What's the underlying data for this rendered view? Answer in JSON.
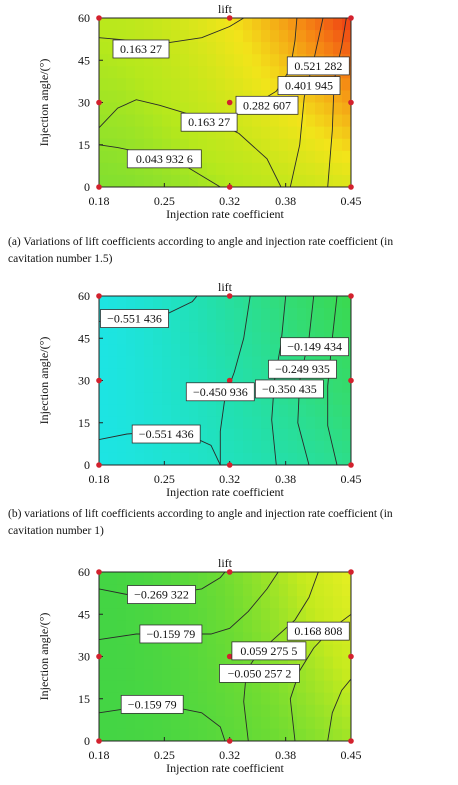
{
  "figure": {
    "captions": [
      "(a) Variations of lift coefficients according to angle and injection rate coefficient (in cavitation number 1.5)",
      "(b) variations of lift coefficients according to angle and injection rate coefficient (in cavitation number 1)"
    ]
  },
  "chart_data": [
    {
      "type": "heatmap",
      "title": "lift",
      "xlabel": "Injection rate coefficient",
      "ylabel": "Injection angle/(°)",
      "xlim": [
        0.18,
        0.45
      ],
      "ylim": [
        0,
        60
      ],
      "x_ticks": [
        "0.18",
        "0.25",
        "0.32",
        "0.38",
        "0.45"
      ],
      "y_ticks": [
        "0",
        "15",
        "30",
        "45",
        "60"
      ],
      "grid": false,
      "contour_labels": [
        {
          "text": "0.163 27",
          "x": 0.225,
          "y": 49
        },
        {
          "text": "0.521 282",
          "x": 0.415,
          "y": 43
        },
        {
          "text": "0.401 945",
          "x": 0.405,
          "y": 36
        },
        {
          "text": "0.282 607",
          "x": 0.36,
          "y": 29
        },
        {
          "text": "0.163 27",
          "x": 0.298,
          "y": 23
        },
        {
          "text": "0.043 932 6",
          "x": 0.25,
          "y": 10
        }
      ],
      "design_points": [
        [
          0.18,
          0
        ],
        [
          0.32,
          0
        ],
        [
          0.45,
          0
        ],
        [
          0.18,
          30
        ],
        [
          0.32,
          30
        ],
        [
          0.45,
          30
        ],
        [
          0.18,
          60
        ],
        [
          0.32,
          60
        ],
        [
          0.45,
          60
        ]
      ],
      "color_stops": [
        "#32d24d",
        "#b6e81c",
        "#f2e41a",
        "#f58d14",
        "#ef3a14"
      ]
    },
    {
      "type": "heatmap",
      "title": "lift",
      "xlabel": "Injection rate coefficient",
      "ylabel": "Injection angle/(°)",
      "xlim": [
        0.18,
        0.45
      ],
      "ylim": [
        0,
        60
      ],
      "x_ticks": [
        "0.18",
        "0.25",
        "0.32",
        "0.38",
        "0.45"
      ],
      "y_ticks": [
        "0",
        "15",
        "30",
        "45",
        "60"
      ],
      "grid": false,
      "contour_labels": [
        {
          "text": "−0.551 436",
          "x": 0.218,
          "y": 52
        },
        {
          "text": "−0.149 434",
          "x": 0.411,
          "y": 42
        },
        {
          "text": "−0.249 935",
          "x": 0.398,
          "y": 34
        },
        {
          "text": "−0.350 435",
          "x": 0.384,
          "y": 27
        },
        {
          "text": "−0.450 936",
          "x": 0.31,
          "y": 26
        },
        {
          "text": "−0.551 436",
          "x": 0.252,
          "y": 11
        }
      ],
      "design_points": [
        [
          0.18,
          0
        ],
        [
          0.32,
          0
        ],
        [
          0.45,
          0
        ],
        [
          0.18,
          30
        ],
        [
          0.32,
          30
        ],
        [
          0.45,
          30
        ],
        [
          0.18,
          60
        ],
        [
          0.32,
          60
        ],
        [
          0.45,
          60
        ]
      ],
      "color_stops": [
        "#1ce5ec",
        "#22e0b0",
        "#33dc74",
        "#3cd846"
      ]
    },
    {
      "type": "heatmap",
      "title": "lift",
      "xlabel": "Injection rate coefficient",
      "ylabel": "Injection angle/(°)",
      "xlim": [
        0.18,
        0.45
      ],
      "ylim": [
        0,
        60
      ],
      "x_ticks": [
        "0.18",
        "0.25",
        "0.32",
        "0.38",
        "0.45"
      ],
      "y_ticks": [
        "0",
        "15",
        "30",
        "45",
        "60"
      ],
      "grid": false,
      "contour_labels": [
        {
          "text": "−0.269 322",
          "x": 0.247,
          "y": 52
        },
        {
          "text": "−0.159 79",
          "x": 0.257,
          "y": 38
        },
        {
          "text": "0.168 808",
          "x": 0.415,
          "y": 39
        },
        {
          "text": "0.059 275 5",
          "x": 0.362,
          "y": 32
        },
        {
          "text": "−0.050 257 2",
          "x": 0.352,
          "y": 24
        },
        {
          "text": "−0.159 79",
          "x": 0.237,
          "y": 13
        }
      ],
      "design_points": [
        [
          0.18,
          0
        ],
        [
          0.32,
          0
        ],
        [
          0.45,
          0
        ],
        [
          0.18,
          30
        ],
        [
          0.32,
          30
        ],
        [
          0.45,
          30
        ],
        [
          0.18,
          60
        ],
        [
          0.32,
          60
        ],
        [
          0.45,
          60
        ]
      ],
      "color_stops": [
        "#31d24c",
        "#6fdc32",
        "#c5ea1e",
        "#ecef24"
      ]
    }
  ]
}
